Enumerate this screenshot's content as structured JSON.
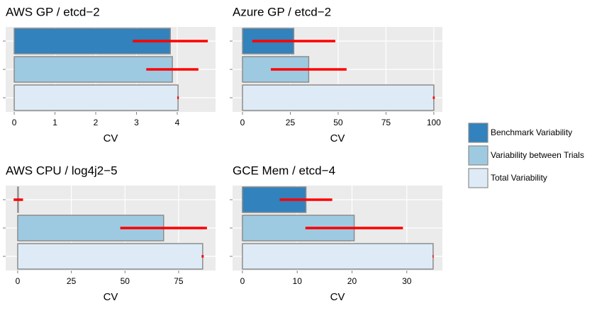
{
  "chart_data": [
    {
      "type": "bar",
      "title": "AWS GP / etcd−2",
      "x_label": "CV",
      "categories": [
        null,
        null,
        null
      ],
      "values": [
        3.83,
        3.88,
        4.02
      ],
      "errors": [
        0.92,
        0.64,
        0.02
      ],
      "xlim": [
        -0.21,
        4.94
      ],
      "xticks": [
        0,
        1,
        2,
        3,
        4
      ],
      "grid": true
    },
    {
      "type": "bar",
      "title": "Azure GP / etcd−2",
      "x_label": "CV",
      "categories": [
        null,
        null,
        null
      ],
      "values": [
        26.8,
        34.6,
        100
      ],
      "errors": [
        21.7,
        19.8,
        0.5
      ],
      "xlim": [
        -5.2,
        104.5
      ],
      "xticks": [
        0,
        25,
        50,
        75,
        100
      ],
      "grid": true
    },
    {
      "type": "bar",
      "title": "AWS CPU / log4j2−5",
      "x_label": "CV",
      "categories": [
        null,
        null,
        null
      ],
      "values": [
        0.3,
        68,
        86.2
      ],
      "errors": [
        2.2,
        20.2,
        0.5
      ],
      "xlim": [
        -5.6,
        92.2
      ],
      "xticks": [
        0,
        25,
        50,
        75
      ],
      "grid": true
    },
    {
      "type": "bar",
      "title": "GCE Mem / etcd−4",
      "x_label": "CV",
      "categories": [
        null,
        null,
        null
      ],
      "values": [
        11.6,
        20.4,
        34.8
      ],
      "errors": [
        4.8,
        8.9,
        0.1
      ],
      "xlim": [
        -1.8,
        36.5
      ],
      "xticks": [
        0,
        10,
        20,
        30
      ],
      "grid": true
    }
  ],
  "legend": {
    "entries": [
      {
        "name": "Benchmark Variability",
        "color": "#3182bd"
      },
      {
        "name": "Variability between Trials",
        "color": "#9ecae1"
      },
      {
        "name": "Total Variability",
        "color": "#deebf7"
      }
    ],
    "error_color": "#ff0000"
  }
}
